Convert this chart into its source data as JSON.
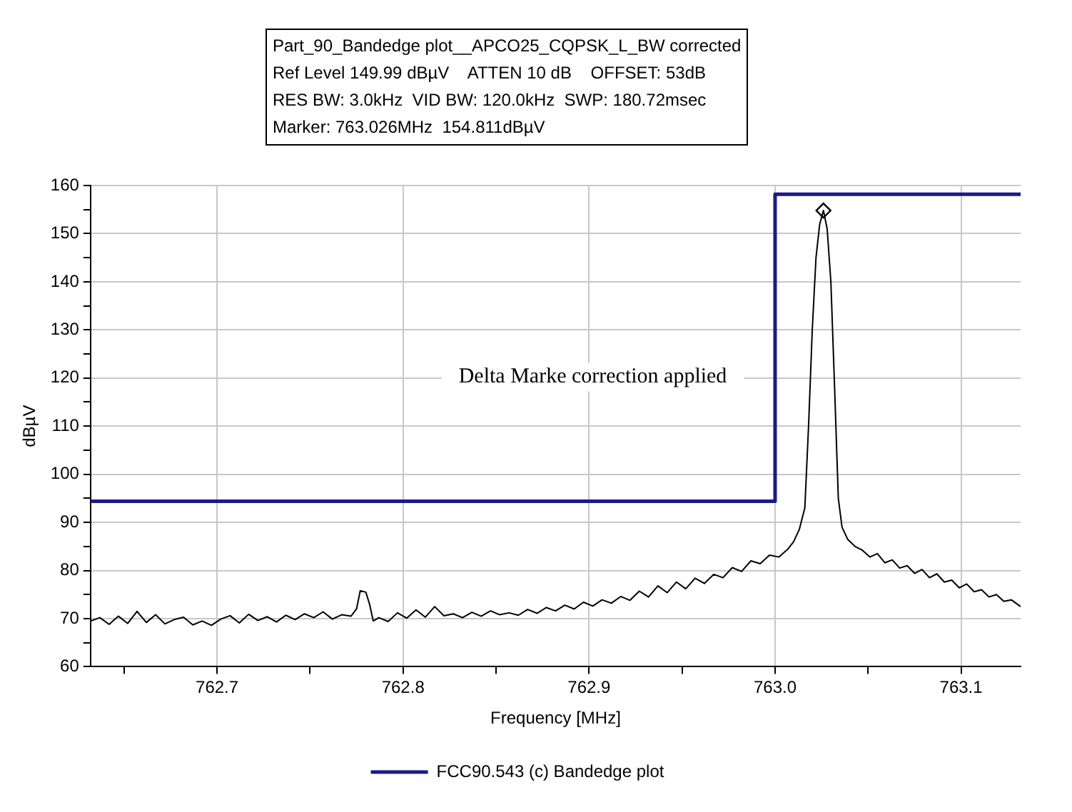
{
  "chart_data": {
    "type": "line",
    "title": "Part_90_Bandedge plot__APCO25_CQPSK_L_BW corrected",
    "annotations": [
      "Ref Level 149.99 dBµV    ATTEN 10 dB    OFFSET: 53dB",
      "RES BW: 3.0kHz  VID BW: 120.0kHz  SWP: 180.72msec",
      "Marker: 763.026MHz  154.811dBµV",
      "Delta Marke correction applied"
    ],
    "xlabel": "Frequency [MHz]",
    "ylabel": "dBµV",
    "xlim": [
      762.632,
      763.132
    ],
    "xticks": [
      {
        "value": 762.65,
        "label": null
      },
      762.7,
      {
        "value": 762.75,
        "label": null
      },
      762.8,
      {
        "value": 762.85,
        "label": null
      },
      762.9,
      {
        "value": 762.95,
        "label": null
      },
      {
        "value": 763,
        "label": "763.0"
      },
      {
        "value": 763.05,
        "label": null
      },
      763.1
    ],
    "ylim": [
      60,
      160
    ],
    "yticks": [
      60,
      {
        "value": 65,
        "label": null
      },
      70,
      {
        "value": 75,
        "label": null
      },
      80,
      {
        "value": 85,
        "label": null
      },
      90,
      {
        "value": 95,
        "label": null
      },
      100,
      {
        "value": 105,
        "label": null
      },
      110,
      {
        "value": 115,
        "label": null
      },
      120,
      {
        "value": 125,
        "label": null
      },
      130,
      {
        "value": 135,
        "label": null
      },
      140,
      {
        "value": 145,
        "label": null
      },
      150,
      {
        "value": 155,
        "label": null
      },
      160
    ],
    "grid": true,
    "legend": "bottom",
    "marker": "none",
    "line_style": "solid",
    "series": [
      {
        "color": "#000000",
        "x": [
          762.632,
          762.637,
          762.642,
          762.647,
          762.652,
          762.657,
          762.662,
          762.667,
          762.672,
          762.677,
          762.682,
          762.687,
          762.692,
          762.697,
          762.702,
          762.707,
          762.712,
          762.717,
          762.722,
          762.727,
          762.732,
          762.737,
          762.742,
          762.747,
          762.752,
          762.757,
          762.762,
          762.767,
          762.772,
          762.775,
          762.777,
          762.78,
          762.782,
          762.784,
          762.787,
          762.792,
          762.797,
          762.802,
          762.807,
          762.812,
          762.817,
          762.822,
          762.827,
          762.832,
          762.837,
          762.842,
          762.847,
          762.852,
          762.857,
          762.862,
          762.867,
          762.872,
          762.877,
          762.882,
          762.887,
          762.892,
          762.897,
          762.902,
          762.907,
          762.912,
          762.917,
          762.922,
          762.927,
          762.932,
          762.937,
          762.942,
          762.947,
          762.952,
          762.957,
          762.962,
          762.967,
          762.972,
          762.977,
          762.982,
          762.987,
          762.992,
          762.997,
          763.002,
          763.007,
          763.01,
          763.013,
          763.016,
          763.018,
          763.02,
          763.022,
          763.024,
          763.026,
          763.028,
          763.03,
          763.032,
          763.034,
          763.036,
          763.039,
          763.043,
          763.047,
          763.051,
          763.055,
          763.059,
          763.063,
          763.067,
          763.071,
          763.075,
          763.079,
          763.083,
          763.087,
          763.091,
          763.095,
          763.099,
          763.103,
          763.107,
          763.111,
          763.115,
          763.119,
          763.123,
          763.127,
          763.132
        ],
        "values": [
          69.5,
          70.2,
          68.8,
          70.5,
          69,
          71.5,
          69.2,
          70.8,
          68.9,
          69.8,
          70.3,
          68.7,
          69.5,
          68.6,
          69.9,
          70.6,
          69.1,
          70.9,
          69.6,
          70.4,
          69.3,
          70.7,
          69.8,
          71,
          70.2,
          71.4,
          69.9,
          70.8,
          70.5,
          72,
          75.8,
          75.5,
          73,
          69.5,
          70.2,
          69.4,
          71.2,
          70.1,
          71.8,
          70.3,
          72.5,
          70.6,
          71,
          70.2,
          71.3,
          70.5,
          71.6,
          70.8,
          71.2,
          70.7,
          71.9,
          71.1,
          72.3,
          71.6,
          72.8,
          72,
          73.4,
          72.6,
          73.9,
          73.2,
          74.6,
          73.8,
          75.7,
          74.5,
          76.8,
          75.4,
          77.6,
          76.2,
          78.4,
          77.3,
          79.2,
          78.5,
          80.6,
          79.8,
          82,
          81.4,
          83.2,
          82.8,
          84.5,
          86,
          88.5,
          93,
          110,
          130,
          145,
          152,
          154.8,
          151,
          140,
          118,
          95,
          89,
          86.5,
          85,
          84.2,
          82.8,
          83.5,
          81.6,
          82.2,
          80.5,
          81,
          79.4,
          80.2,
          78.5,
          79.3,
          77.6,
          78,
          76.4,
          77.2,
          75.6,
          76,
          74.5,
          75,
          73.6,
          73.9,
          72.5
        ]
      },
      {
        "name": "FCC90.543 (c) Bandedge plot",
        "color": "#1a1a8c",
        "x": [
          762.632,
          763,
          763,
          763.132
        ],
        "values": [
          94.4,
          94.4,
          158.2,
          158.2
        ]
      },
      {
        "type": "scatter",
        "marker": "diamond",
        "color": "#000000",
        "x": [
          763.026
        ],
        "values": [
          154.8
        ]
      }
    ]
  }
}
